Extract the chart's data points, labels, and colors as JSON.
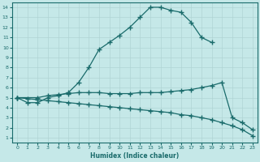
{
  "xlabel": "Humidex (Indice chaleur)",
  "background_color": "#c5e8e8",
  "line_color": "#1a6b6b",
  "grid_color": "#b0d4d4",
  "xlim": [
    -0.5,
    23.5
  ],
  "ylim": [
    0.5,
    14.5
  ],
  "xticks": [
    0,
    1,
    2,
    3,
    4,
    5,
    6,
    7,
    8,
    9,
    10,
    11,
    12,
    13,
    14,
    15,
    16,
    17,
    18,
    19,
    20,
    21,
    22,
    23
  ],
  "yticks": [
    1,
    2,
    3,
    4,
    5,
    6,
    7,
    8,
    9,
    10,
    11,
    12,
    13,
    14
  ],
  "curves": [
    {
      "x": [
        0,
        1,
        2,
        3,
        4,
        5,
        6,
        7,
        8,
        9,
        10,
        11,
        12,
        13,
        14,
        15,
        16,
        17,
        18,
        19
      ],
      "y": [
        5,
        4.5,
        4.5,
        5,
        5.2,
        5.5,
        6.5,
        8,
        9.8,
        10.5,
        11.2,
        12,
        13,
        14,
        14,
        13.7,
        13.5,
        12.5,
        11,
        10.5
      ]
    },
    {
      "x": [
        0,
        2,
        3,
        4,
        5,
        6,
        7,
        8,
        9,
        10,
        11,
        12,
        13,
        14,
        15,
        16,
        17,
        18,
        19,
        20,
        21,
        22,
        23
      ],
      "y": [
        5,
        5,
        5.2,
        5.3,
        5.4,
        5.5,
        5.5,
        5.5,
        5.4,
        5.4,
        5.4,
        5.5,
        5.5,
        5.5,
        5.6,
        5.7,
        5.8,
        6.0,
        6.2,
        6.5,
        3.0,
        2.5,
        1.8
      ]
    },
    {
      "x": [
        0,
        1,
        2,
        3,
        4,
        5,
        6,
        7,
        8,
        9,
        10,
        11,
        12,
        13,
        14,
        15,
        16,
        17,
        18,
        19,
        20,
        21,
        22,
        23
      ],
      "y": [
        5,
        4.9,
        4.8,
        4.7,
        4.6,
        4.5,
        4.4,
        4.3,
        4.2,
        4.1,
        4.0,
        3.9,
        3.8,
        3.7,
        3.6,
        3.5,
        3.3,
        3.2,
        3.0,
        2.8,
        2.5,
        2.2,
        1.8,
        1.2
      ]
    }
  ]
}
